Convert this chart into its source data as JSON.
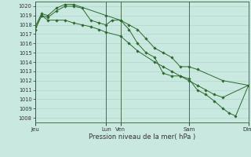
{
  "bg_color": "#c8e8e0",
  "grid_color": "#aad4c8",
  "line_color": "#2d6a2d",
  "marker_color": "#2d6a2d",
  "xlabel": "Pression niveau de la mer( hPa )",
  "ylim": [
    1007.5,
    1020.5
  ],
  "yticks": [
    1008,
    1009,
    1010,
    1011,
    1012,
    1013,
    1014,
    1015,
    1016,
    1017,
    1018,
    1019,
    1020
  ],
  "xtick_labels": [
    "Jeu",
    "Lun",
    "Ven",
    "Sam",
    "Dim"
  ],
  "xtick_positions": [
    0.0,
    0.333,
    0.4,
    0.722,
    1.0
  ],
  "vline_positions": [
    0.0,
    0.333,
    0.4,
    0.722,
    1.0
  ],
  "series": [
    {
      "x": [
        0.0,
        0.03,
        0.06,
        0.1,
        0.14,
        0.18,
        0.22,
        0.26,
        0.3,
        0.333,
        0.36,
        0.4,
        0.44,
        0.48,
        0.52,
        0.56,
        0.6,
        0.64,
        0.68,
        0.72,
        0.76,
        0.88,
        1.0
      ],
      "y": [
        1017.5,
        1019.0,
        1018.8,
        1019.5,
        1020.0,
        1020.0,
        1019.8,
        1018.5,
        1018.2,
        1018.0,
        1018.5,
        1018.5,
        1018.0,
        1017.5,
        1016.5,
        1015.5,
        1015.0,
        1014.5,
        1013.5,
        1013.5,
        1013.2,
        1012.0,
        1011.5
      ]
    },
    {
      "x": [
        0.0,
        0.03,
        0.06,
        0.1,
        0.14,
        0.18,
        0.333,
        0.4,
        0.44,
        0.48,
        0.52,
        0.56,
        0.6,
        0.64,
        0.68,
        0.72,
        0.76,
        0.8,
        0.84,
        0.88,
        0.91,
        0.94,
        1.0
      ],
      "y": [
        1017.8,
        1019.2,
        1019.0,
        1019.8,
        1020.2,
        1020.2,
        1019.0,
        1018.5,
        1017.5,
        1016.0,
        1015.0,
        1014.5,
        1012.8,
        1012.5,
        1012.5,
        1012.2,
        1011.0,
        1010.5,
        1009.8,
        1009.0,
        1008.5,
        1008.2,
        1011.5
      ]
    },
    {
      "x": [
        0.0,
        0.03,
        0.06,
        0.1,
        0.14,
        0.18,
        0.22,
        0.26,
        0.3,
        0.333,
        0.4,
        0.44,
        0.48,
        0.56,
        0.6,
        0.64,
        0.68,
        0.72,
        0.76,
        0.8,
        0.84,
        0.88,
        1.0
      ],
      "y": [
        1017.5,
        1019.0,
        1018.5,
        1018.5,
        1018.5,
        1018.2,
        1018.0,
        1017.8,
        1017.5,
        1017.2,
        1016.8,
        1016.0,
        1015.2,
        1014.0,
        1013.5,
        1013.0,
        1012.5,
        1012.0,
        1011.5,
        1011.0,
        1010.5,
        1010.2,
        1011.5
      ]
    }
  ]
}
